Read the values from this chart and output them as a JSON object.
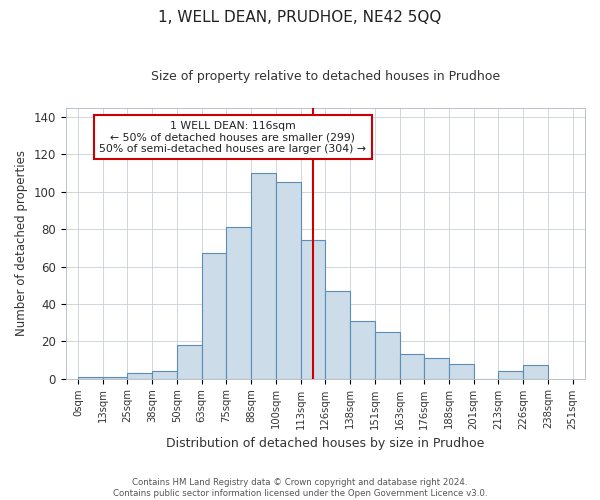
{
  "title": "1, WELL DEAN, PRUDHOE, NE42 5QQ",
  "subtitle": "Size of property relative to detached houses in Prudhoe",
  "xlabel": "Distribution of detached houses by size in Prudhoe",
  "ylabel": "Number of detached properties",
  "tick_labels": [
    "0sqm",
    "13sqm",
    "25sqm",
    "38sqm",
    "50sqm",
    "63sqm",
    "75sqm",
    "88sqm",
    "100sqm",
    "113sqm",
    "126sqm",
    "138sqm",
    "151sqm",
    "163sqm",
    "176sqm",
    "188sqm",
    "201sqm",
    "213sqm",
    "226sqm",
    "238sqm",
    "251sqm"
  ],
  "bar_heights": [
    1,
    1,
    3,
    4,
    18,
    67,
    81,
    110,
    105,
    74,
    47,
    31,
    25,
    13,
    11,
    8,
    0,
    4,
    7
  ],
  "bar_color": "#ccdce8",
  "bar_edge_color": "#5b8db8",
  "vline_x_idx": 9.5,
  "vline_color": "#cc0000",
  "annotation_title": "1 WELL DEAN: 116sqm",
  "annotation_line1": "← 50% of detached houses are smaller (299)",
  "annotation_line2": "50% of semi-detached houses are larger (304) →",
  "annotation_box_color": "#ffffff",
  "annotation_box_edge_color": "#cc0000",
  "footnote1": "Contains HM Land Registry data © Crown copyright and database right 2024.",
  "footnote2": "Contains public sector information licensed under the Open Government Licence v3.0.",
  "ylim": [
    0,
    145
  ],
  "background_color": "#ffffff",
  "grid_color": "#c8d0d8"
}
